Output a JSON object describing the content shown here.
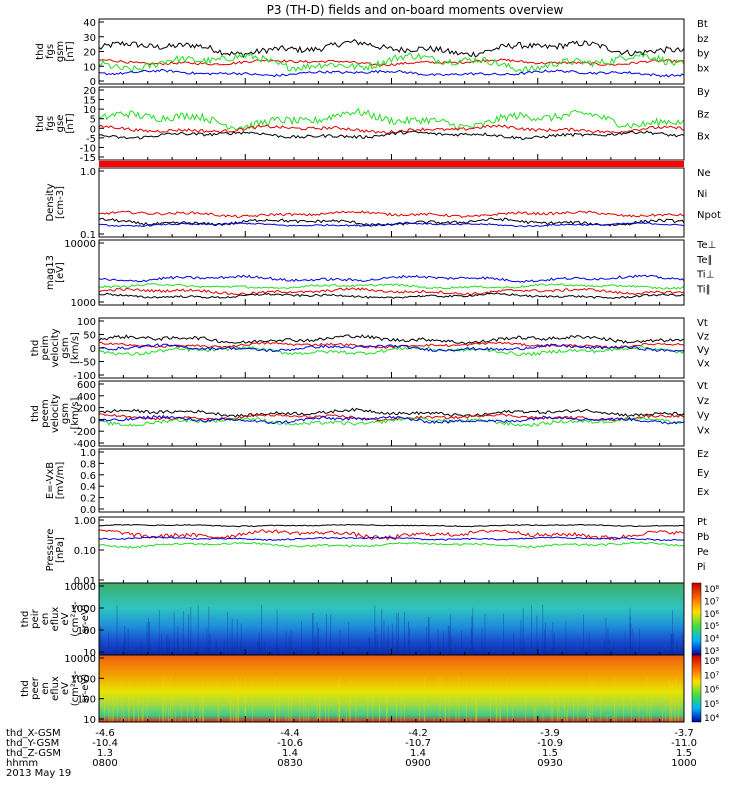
{
  "title": "P3 (TH-D) fields and on-board moments overview",
  "colors": {
    "black": "#000000",
    "red": "#e00000",
    "green": "#22dd22",
    "blue": "#0000e0",
    "brown": "#8b0000"
  },
  "chart_data": [
    {
      "type": "line",
      "ylabel": [
        "thd",
        "fgs",
        "gsm",
        "[nT]"
      ],
      "yticks": [
        "40",
        "30",
        "20",
        "10",
        "0"
      ],
      "ylim": [
        0,
        42
      ],
      "series": [
        {
          "name": "Bt",
          "color": "#000000",
          "base": 23,
          "amp": 5
        },
        {
          "name": "bz",
          "color": "#e00000",
          "base": 14,
          "amp": 2
        },
        {
          "name": "by",
          "color": "#22dd22",
          "base": 14,
          "amp": 6
        },
        {
          "name": "bx",
          "color": "#0000e0",
          "base": 7,
          "amp": 2
        }
      ]
    },
    {
      "type": "line",
      "ylabel": [
        "thd",
        "fgs",
        "gse",
        "[nT]"
      ],
      "yticks": [
        "20",
        "15",
        "10",
        "5",
        "0",
        "-5",
        "-10",
        "-15"
      ],
      "ylim": [
        -17,
        21
      ],
      "series": [
        {
          "name": "By",
          "color": "#22dd22",
          "base": 4,
          "amp": 5
        },
        {
          "name": "Bz",
          "color": "#e00000",
          "base": -1,
          "amp": 2
        },
        {
          "name": "Bx",
          "color": "#000000",
          "base": -4,
          "amp": 2
        }
      ]
    },
    {
      "type": "line",
      "ylabel": [
        "Density",
        "[cm-3]"
      ],
      "yticks": [
        "1.0",
        "0.1"
      ],
      "ylim": [
        0.08,
        1.2
      ],
      "series": [
        {
          "name": "Ne",
          "color": "#e00000",
          "base": 0.45,
          "amp": 0.05
        },
        {
          "name": "Ni",
          "color": "#000000",
          "base": 0.32,
          "amp": 0.06
        },
        {
          "name": "Npot",
          "color": "#0000e0",
          "base": 0.28,
          "amp": 0.03
        }
      ]
    },
    {
      "type": "line",
      "ylabel": [
        "mag13",
        "[eV]"
      ],
      "yticks": [
        "10000",
        "1000"
      ],
      "ylim": [
        900,
        11000
      ],
      "series": [
        {
          "name": "Te⊥",
          "color": "#e00000",
          "base": 3000,
          "amp": 500
        },
        {
          "name": "Te∥",
          "color": "#000000",
          "base": 2300,
          "amp": 400
        },
        {
          "name": "Ti⊥",
          "color": "#0000e0",
          "base": 5000,
          "amp": 500
        },
        {
          "name": "Ti∥",
          "color": "#22dd22",
          "base": 3800,
          "amp": 400
        }
      ]
    },
    {
      "type": "line",
      "ylabel": [
        "thd",
        "peim",
        "velocity",
        "gsm",
        "[km/s]"
      ],
      "yticks": [
        "100",
        "50",
        "0",
        "-50",
        "-100"
      ],
      "ylim": [
        -105,
        105
      ],
      "series": [
        {
          "name": "Vt",
          "color": "#000000",
          "base": 30,
          "amp": 15
        },
        {
          "name": "Vz",
          "color": "#e00000",
          "base": 10,
          "amp": 10
        },
        {
          "name": "Vy",
          "color": "#22dd22",
          "base": -10,
          "amp": 15
        },
        {
          "name": "Vx",
          "color": "#0000e0",
          "base": 0,
          "amp": 12
        }
      ]
    },
    {
      "type": "line",
      "ylabel": [
        "thd",
        "peem",
        "velocity",
        "gsm",
        "[km/s]"
      ],
      "yticks": [
        "600",
        "400",
        "200",
        "0",
        "-200",
        "-400"
      ],
      "ylim": [
        -420,
        620
      ],
      "series": [
        {
          "name": "Vt",
          "color": "#000000",
          "base": 110,
          "amp": 60
        },
        {
          "name": "Vz",
          "color": "#e00000",
          "base": 40,
          "amp": 50
        },
        {
          "name": "Vy",
          "color": "#22dd22",
          "base": -30,
          "amp": 70
        },
        {
          "name": "Vx",
          "color": "#0000e0",
          "base": 0,
          "amp": 60
        }
      ]
    },
    {
      "type": "line",
      "ylabel": [
        "E=-VxB",
        "[mV/m]"
      ],
      "yticks": [
        "1.0",
        "0.8",
        "0.6",
        "0.4",
        "0.2",
        "0.0"
      ],
      "ylim": [
        0,
        1
      ],
      "series": [
        {
          "name": "Ez",
          "color": "#e00000"
        },
        {
          "name": "Ey",
          "color": "#22dd22"
        },
        {
          "name": "Ex",
          "color": "#0000e0"
        }
      ]
    },
    {
      "type": "line",
      "ylabel": [
        "Pressure",
        "[nPa]"
      ],
      "yticks": [
        "1.00",
        "0.10",
        "0.01"
      ],
      "ylim": [
        0.01,
        1.2
      ],
      "series": [
        {
          "name": "Pt",
          "color": "#000000",
          "base": 0.65,
          "amp": 0.05
        },
        {
          "name": "Pb",
          "color": "#e00000",
          "base": 0.35,
          "amp": 0.12
        },
        {
          "name": "Pe",
          "color": "#22dd22",
          "base": 0.16,
          "amp": 0.03
        },
        {
          "name": "Pi",
          "color": "#0000e0",
          "base": 0.25,
          "amp": 0.03
        }
      ]
    },
    {
      "type": "heatmap",
      "ylabel": [
        "thd",
        "peir",
        "en",
        "eflux",
        "eV",
        "(cm²-s-",
        "sr-eV)"
      ],
      "yticks": [
        "10000",
        "1000",
        "100",
        "10"
      ],
      "colorbar_labels": [
        "10⁸",
        "10⁷",
        "10⁶",
        "10⁵",
        "10⁴",
        "10³"
      ]
    },
    {
      "type": "heatmap",
      "ylabel": [
        "thd",
        "peer",
        "en",
        "eflux",
        "eV",
        "(cm²-s-",
        "sr-eV)"
      ],
      "yticks": [
        "10000",
        "1000",
        "100",
        "10"
      ],
      "colorbar_labels": [
        "10⁸",
        "10⁷",
        "10⁶",
        "10⁵",
        "10⁴"
      ]
    }
  ],
  "xaxis": {
    "rows": [
      {
        "label": "thd_X-GSM",
        "values": [
          "-4.6",
          "-4.4",
          "-4.2",
          "-3.9",
          "-3.7"
        ]
      },
      {
        "label": "thd_Y-GSM",
        "values": [
          "-10.4",
          "-10.6",
          "-10.7",
          "-10.9",
          "-11.0"
        ]
      },
      {
        "label": "thd_Z-GSM",
        "values": [
          "1.3",
          "1.4",
          "1.4",
          "1.5",
          "1.5"
        ]
      },
      {
        "label": "hhmm",
        "values": [
          "0800",
          "0830",
          "0900",
          "0930",
          "1000"
        ]
      }
    ],
    "date": "2013 May 19"
  }
}
